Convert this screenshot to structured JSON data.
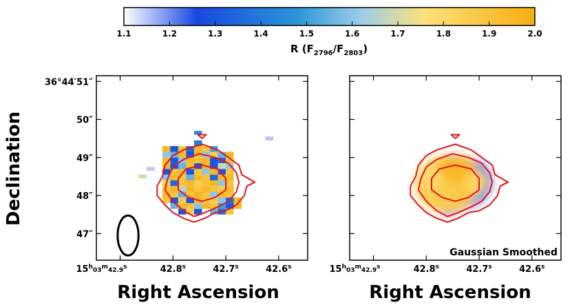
{
  "colorbar": {
    "label_main": "R (F",
    "label_sub1": "2796",
    "label_mid": "/F",
    "label_sub2": "2803",
    "label_end": ")",
    "range": [
      1.1,
      2.0
    ],
    "ticks": [
      "1.1",
      "1.2",
      "1.3",
      "1.4",
      "1.5",
      "1.6",
      "1.7",
      "1.8",
      "1.9",
      "2.0"
    ],
    "stops": [
      {
        "v": 1.1,
        "color": "#ffffff"
      },
      {
        "v": 1.26,
        "color": "#1848e0"
      },
      {
        "v": 1.48,
        "color": "#2b96d8"
      },
      {
        "v": 1.62,
        "color": "#9dcdea"
      },
      {
        "v": 1.76,
        "color": "#fde27a"
      },
      {
        "v": 2.0,
        "color": "#f7ad10"
      }
    ]
  },
  "left_panel": {
    "ylabel": "Declination",
    "xlabel": "Right Ascension",
    "yticks": [
      {
        "v": 51,
        "label": "36°44′51″"
      },
      {
        "v": 50,
        "label": "50″"
      },
      {
        "v": 49,
        "label": "49″"
      },
      {
        "v": 48,
        "label": "48″"
      },
      {
        "v": 47,
        "label": "47″"
      }
    ],
    "xticks": [
      {
        "v": 42.9,
        "h": "15",
        "m": "03",
        "s": "42.9"
      },
      {
        "v": 42.8,
        "label": "42.8"
      },
      {
        "v": 42.7,
        "label": "42.7"
      },
      {
        "v": 42.6,
        "label": "42.6"
      }
    ],
    "beam": {
      "ra": 42.885,
      "dec": 46.95,
      "w_arcsec": 0.55,
      "h_arcsec": 1.05
    }
  },
  "right_panel": {
    "xlabel": "Right Ascension",
    "annotation": "Gaussian Smoothed",
    "xticks": [
      {
        "v": 42.9,
        "h": "15",
        "m": "03",
        "s": "42.9"
      },
      {
        "v": 42.8,
        "label": "42.8"
      },
      {
        "v": 42.7,
        "label": "42.7"
      },
      {
        "v": 42.6,
        "label": "42.6"
      }
    ]
  },
  "chart_data": {
    "type": "heatmap",
    "xlabel": "Right Ascension",
    "ylabel": "Declination",
    "colorbar_label": "R (F2796/F2803)",
    "xlim": [
      42.945,
      42.545
    ],
    "ylim": [
      46.3,
      51.15
    ],
    "pixel_ra": [
      42.82,
      42.805,
      42.79,
      42.775,
      42.76,
      42.745,
      42.73,
      42.715,
      42.7,
      42.685
    ],
    "pixel_dec": [
      47.35,
      47.5,
      47.65,
      47.8,
      47.95,
      48.1,
      48.25,
      48.4,
      48.55,
      48.7,
      48.85,
      49.0,
      49.15,
      49.3
    ],
    "ratio_map": [
      [
        null,
        null,
        null,
        null,
        null,
        null,
        null,
        null,
        null,
        null
      ],
      [
        null,
        null,
        1.3,
        1.85,
        1.3,
        1.1,
        1.55,
        1.35,
        1.9,
        null
      ],
      [
        null,
        1.55,
        1.95,
        1.9,
        1.6,
        1.95,
        1.9,
        1.5,
        1.3,
        1.95
      ],
      [
        1.9,
        1.3,
        1.85,
        1.25,
        1.95,
        1.9,
        1.85,
        1.6,
        1.35,
        1.95
      ],
      [
        1.95,
        1.9,
        1.55,
        1.9,
        1.95,
        1.9,
        1.6,
        1.95,
        1.9,
        null
      ],
      [
        1.9,
        1.95,
        1.65,
        1.95,
        1.9,
        1.95,
        1.9,
        1.85,
        1.95,
        null
      ],
      [
        1.85,
        1.35,
        1.9,
        1.95,
        1.85,
        1.9,
        1.95,
        1.6,
        1.9,
        null
      ],
      [
        1.6,
        1.95,
        1.9,
        1.55,
        1.95,
        1.9,
        1.35,
        1.95,
        1.95,
        null
      ],
      [
        1.3,
        1.9,
        1.95,
        1.3,
        1.9,
        1.6,
        1.95,
        1.25,
        1.9,
        null
      ],
      [
        1.95,
        1.3,
        1.55,
        1.9,
        1.3,
        1.95,
        1.3,
        1.7,
        1.6,
        null
      ],
      [
        1.95,
        1.25,
        1.6,
        1.95,
        1.9,
        1.95,
        1.3,
        1.35,
        1.9,
        null
      ],
      [
        1.6,
        1.55,
        1.95,
        1.3,
        1.95,
        1.6,
        1.85,
        1.55,
        1.95,
        null
      ],
      [
        1.95,
        1.3,
        1.9,
        1.35,
        1.95,
        1.9,
        1.5,
        null,
        null,
        null
      ],
      [
        null,
        null,
        null,
        null,
        1.4,
        null,
        null,
        null,
        null,
        null
      ]
    ],
    "isolated_pixels": [
      {
        "ra": 42.865,
        "dec": 48.45,
        "R": 1.7
      },
      {
        "ra": 42.85,
        "dec": 48.65,
        "R": 1.15
      },
      {
        "ra": 42.625,
        "dec": 49.45,
        "R": 1.15
      },
      {
        "ra": 42.76,
        "dec": 49.6,
        "R": 1.45
      }
    ],
    "smoothed_blobs": [
      {
        "ra": 42.76,
        "dec": 48.3,
        "rx": 0.06,
        "ry": 0.75,
        "R": 1.88
      },
      {
        "ra": 42.74,
        "dec": 48.7,
        "rx": 0.035,
        "ry": 0.35,
        "R": 1.95
      },
      {
        "ra": 42.77,
        "dec": 47.9,
        "rx": 0.035,
        "ry": 0.3,
        "R": 1.86
      },
      {
        "ra": 42.705,
        "dec": 48.35,
        "rx": 0.02,
        "ry": 0.3,
        "R": 1.82
      },
      {
        "ra": 42.79,
        "dec": 48.45,
        "rx": 0.02,
        "ry": 0.35,
        "R": 1.8
      }
    ],
    "contours": [
      {
        "level": "outer",
        "points": [
          [
            42.76,
            47.3
          ],
          [
            42.74,
            47.4
          ],
          [
            42.72,
            47.55
          ],
          [
            42.7,
            47.6
          ],
          [
            42.68,
            47.75
          ],
          [
            42.665,
            48.0
          ],
          [
            42.66,
            48.25
          ],
          [
            42.645,
            48.35
          ],
          [
            42.67,
            48.55
          ],
          [
            42.675,
            48.8
          ],
          [
            42.695,
            49.0
          ],
          [
            42.715,
            49.2
          ],
          [
            42.745,
            49.35
          ],
          [
            42.78,
            49.2
          ],
          [
            42.8,
            49.05
          ],
          [
            42.815,
            48.8
          ],
          [
            42.82,
            48.5
          ],
          [
            42.83,
            48.25
          ],
          [
            42.83,
            48.0
          ],
          [
            42.815,
            47.75
          ],
          [
            42.8,
            47.55
          ],
          [
            42.78,
            47.4
          ]
        ]
      },
      {
        "level": "middle",
        "points": [
          [
            42.76,
            47.45
          ],
          [
            42.74,
            47.55
          ],
          [
            42.715,
            47.7
          ],
          [
            42.695,
            47.85
          ],
          [
            42.68,
            48.1
          ],
          [
            42.675,
            48.35
          ],
          [
            42.68,
            48.6
          ],
          [
            42.695,
            48.85
          ],
          [
            42.72,
            49.0
          ],
          [
            42.75,
            49.1
          ],
          [
            42.78,
            48.95
          ],
          [
            42.8,
            48.75
          ],
          [
            42.81,
            48.45
          ],
          [
            42.815,
            48.15
          ],
          [
            42.8,
            47.85
          ],
          [
            42.78,
            47.6
          ]
        ]
      },
      {
        "level": "inner",
        "points": [
          [
            42.77,
            47.95
          ],
          [
            42.745,
            47.85
          ],
          [
            42.72,
            47.95
          ],
          [
            42.7,
            48.15
          ],
          [
            42.7,
            48.45
          ],
          [
            42.715,
            48.7
          ],
          [
            42.745,
            48.8
          ],
          [
            42.775,
            48.7
          ],
          [
            42.79,
            48.45
          ],
          [
            42.79,
            48.15
          ]
        ]
      },
      {
        "level": "peak-marker",
        "points": [
          [
            42.745,
            49.5
          ],
          [
            42.737,
            49.6
          ],
          [
            42.753,
            49.6
          ]
        ]
      }
    ]
  }
}
